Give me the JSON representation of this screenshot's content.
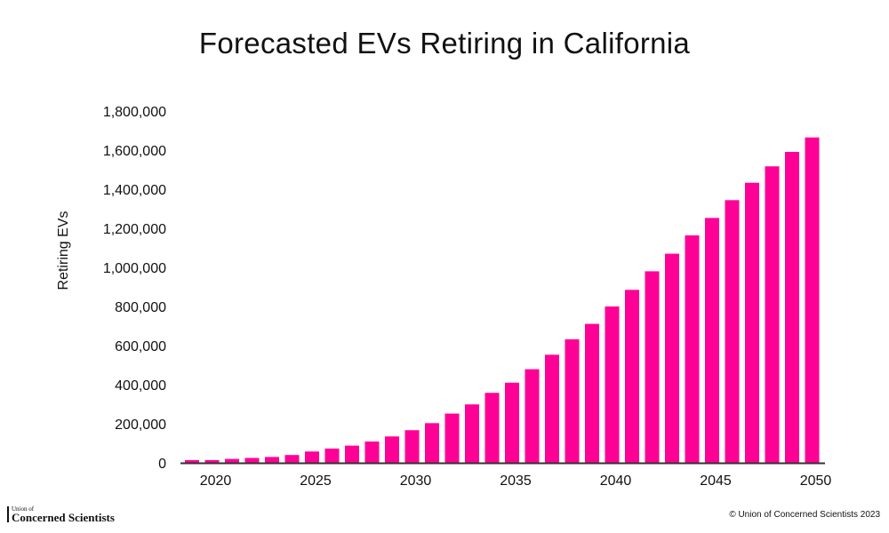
{
  "chart_data": {
    "type": "bar",
    "title": "Forecasted EVs Retiring in California",
    "xlabel": "",
    "ylabel": "Retiring EVs",
    "ylim": [
      0,
      1800000
    ],
    "yticks": [
      "0",
      "200,000",
      "400,000",
      "600,000",
      "800,000",
      "1,000,000",
      "1,200,000",
      "1,400,000",
      "1,600,000",
      "1,800,000"
    ],
    "xticks": [
      "2020",
      "2025",
      "2030",
      "2035",
      "2040",
      "2045",
      "2050"
    ],
    "grid": false,
    "bar_color": "#ff0096",
    "categories": [
      2019,
      2020,
      2021,
      2022,
      2023,
      2024,
      2025,
      2026,
      2027,
      2028,
      2029,
      2030,
      2031,
      2032,
      2033,
      2034,
      2035,
      2036,
      2037,
      2038,
      2039,
      2040,
      2041,
      2042,
      2043,
      2044,
      2045,
      2046,
      2047,
      2048,
      2049,
      2050
    ],
    "values": [
      14000,
      14000,
      20000,
      25000,
      30000,
      40000,
      58000,
      73000,
      88000,
      109000,
      135000,
      167000,
      203000,
      252000,
      299000,
      358000,
      410000,
      479000,
      553000,
      632000,
      711000,
      800000,
      885000,
      980000,
      1070000,
      1164000,
      1253000,
      1344000,
      1433000,
      1517000,
      1591000,
      1665000
    ]
  },
  "footer": {
    "logo_top": "Union of",
    "logo_main": "Concerned Scientists",
    "copyright": "© Union of Concerned Scientists 2023"
  }
}
